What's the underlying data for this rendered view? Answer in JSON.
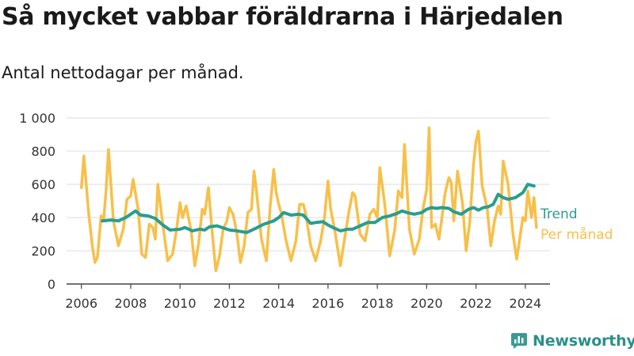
{
  "title": "Så mycket vabbar föräldrarna i Härjedalen",
  "subtitle": "Antal nettodagar per månad.",
  "brand": {
    "name": "Newsworthy",
    "icon": "bar-chart-logo-icon",
    "color": "#3a9a95"
  },
  "chart_data": {
    "type": "line",
    "title": "Så mycket vabbar föräldrarna i Härjedalen",
    "subtitle": "Antal nettodagar per månad.",
    "xlabel": "",
    "ylabel": "",
    "xlim": [
      2005.4,
      2025.0
    ],
    "ylim": [
      0,
      1000
    ],
    "grid": true,
    "xticks": [
      2006,
      2008,
      2010,
      2012,
      2014,
      2016,
      2018,
      2020,
      2022,
      2024
    ],
    "xtick_labels": [
      "2006",
      "2008",
      "2010",
      "2012",
      "2014",
      "2016",
      "2018",
      "2020",
      "2022",
      "2024"
    ],
    "yticks": [
      0,
      200,
      400,
      600,
      800,
      1000
    ],
    "ytick_labels": [
      "0",
      "200",
      "400",
      "600",
      "800",
      "1 000"
    ],
    "legend_placement": "right, at line ends",
    "series": [
      {
        "name": "Per månad",
        "color": "#f7c04a",
        "x": [
          2006.0,
          2006.1,
          2006.3,
          2006.45,
          2006.55,
          2006.65,
          2006.8,
          2006.9,
          2007.0,
          2007.1,
          2007.3,
          2007.5,
          2007.7,
          2007.85,
          2008.0,
          2008.1,
          2008.3,
          2008.45,
          2008.6,
          2008.75,
          2008.9,
          2009.0,
          2009.1,
          2009.3,
          2009.5,
          2009.7,
          2009.85,
          2010.0,
          2010.1,
          2010.25,
          2010.45,
          2010.6,
          2010.75,
          2010.9,
          2011.0,
          2011.15,
          2011.3,
          2011.45,
          2011.6,
          2011.75,
          2011.9,
          2012.0,
          2012.15,
          2012.3,
          2012.45,
          2012.6,
          2012.75,
          2012.9,
          2013.0,
          2013.1,
          2013.3,
          2013.5,
          2013.65,
          2013.8,
          2013.9,
          2014.0,
          2014.1,
          2014.3,
          2014.5,
          2014.7,
          2014.85,
          2015.0,
          2015.1,
          2015.3,
          2015.5,
          2015.7,
          2015.85,
          2016.0,
          2016.1,
          2016.3,
          2016.5,
          2016.7,
          2016.85,
          2017.0,
          2017.1,
          2017.3,
          2017.5,
          2017.7,
          2017.85,
          2018.0,
          2018.1,
          2018.3,
          2018.5,
          2018.7,
          2018.85,
          2019.0,
          2019.1,
          2019.3,
          2019.5,
          2019.7,
          2019.85,
          2020.0,
          2020.1,
          2020.2,
          2020.35,
          2020.5,
          2020.6,
          2020.75,
          2020.9,
          2021.0,
          2021.1,
          2021.25,
          2021.45,
          2021.6,
          2021.75,
          2021.9,
          2022.0,
          2022.1,
          2022.25,
          2022.45,
          2022.6,
          2022.75,
          2022.9,
          2023.0,
          2023.1,
          2023.3,
          2023.5,
          2023.65,
          2023.8,
          2023.9,
          2024.0,
          2024.1,
          2024.25,
          2024.35,
          2024.45
        ],
        "values": [
          580,
          770,
          420,
          220,
          130,
          160,
          410,
          380,
          560,
          810,
          380,
          230,
          330,
          510,
          530,
          630,
          450,
          180,
          160,
          360,
          340,
          270,
          600,
          360,
          140,
          180,
          320,
          490,
          400,
          470,
          320,
          110,
          240,
          450,
          420,
          580,
          320,
          80,
          170,
          330,
          380,
          460,
          420,
          310,
          130,
          230,
          430,
          450,
          680,
          560,
          270,
          140,
          460,
          690,
          550,
          480,
          430,
          260,
          140,
          260,
          480,
          480,
          420,
          230,
          140,
          260,
          390,
          620,
          460,
          300,
          110,
          300,
          440,
          550,
          530,
          300,
          260,
          420,
          450,
          400,
          700,
          480,
          170,
          320,
          560,
          520,
          840,
          330,
          180,
          270,
          450,
          570,
          940,
          340,
          360,
          270,
          380,
          550,
          640,
          610,
          380,
          680,
          490,
          200,
          380,
          720,
          860,
          920,
          590,
          460,
          230,
          380,
          470,
          420,
          740,
          600,
          300,
          150,
          300,
          400,
          380,
          560,
          400,
          520,
          340
        ]
      },
      {
        "name": "Trend",
        "color": "#2a9d8f",
        "x": [
          2006.85,
          2007.2,
          2007.5,
          2007.8,
          2008.0,
          2008.2,
          2008.4,
          2008.7,
          2009.0,
          2009.3,
          2009.6,
          2010.0,
          2010.2,
          2010.5,
          2010.8,
          2011.0,
          2011.2,
          2011.5,
          2011.8,
          2012.0,
          2012.3,
          2012.7,
          2013.0,
          2013.4,
          2013.8,
          2014.0,
          2014.2,
          2014.5,
          2014.8,
          2015.0,
          2015.3,
          2015.5,
          2015.8,
          2016.0,
          2016.2,
          2016.5,
          2016.8,
          2017.0,
          2017.3,
          2017.6,
          2017.9,
          2018.2,
          2018.5,
          2018.8,
          2019.0,
          2019.2,
          2019.5,
          2019.8,
          2020.0,
          2020.2,
          2020.4,
          2020.6,
          2020.9,
          2021.1,
          2021.4,
          2021.7,
          2021.9,
          2022.1,
          2022.3,
          2022.5,
          2022.7,
          2022.9,
          2023.1,
          2023.3,
          2023.6,
          2023.9,
          2024.1,
          2024.35
        ],
        "values": [
          380,
          385,
          380,
          400,
          420,
          440,
          415,
          410,
          395,
          355,
          325,
          330,
          340,
          320,
          330,
          325,
          345,
          350,
          335,
          325,
          320,
          310,
          330,
          360,
          380,
          400,
          430,
          415,
          420,
          415,
          365,
          370,
          375,
          355,
          340,
          320,
          330,
          330,
          350,
          370,
          370,
          400,
          410,
          425,
          440,
          430,
          420,
          430,
          450,
          460,
          455,
          460,
          455,
          435,
          420,
          450,
          460,
          445,
          460,
          465,
          480,
          540,
          520,
          510,
          520,
          550,
          600,
          590
        ]
      }
    ]
  }
}
